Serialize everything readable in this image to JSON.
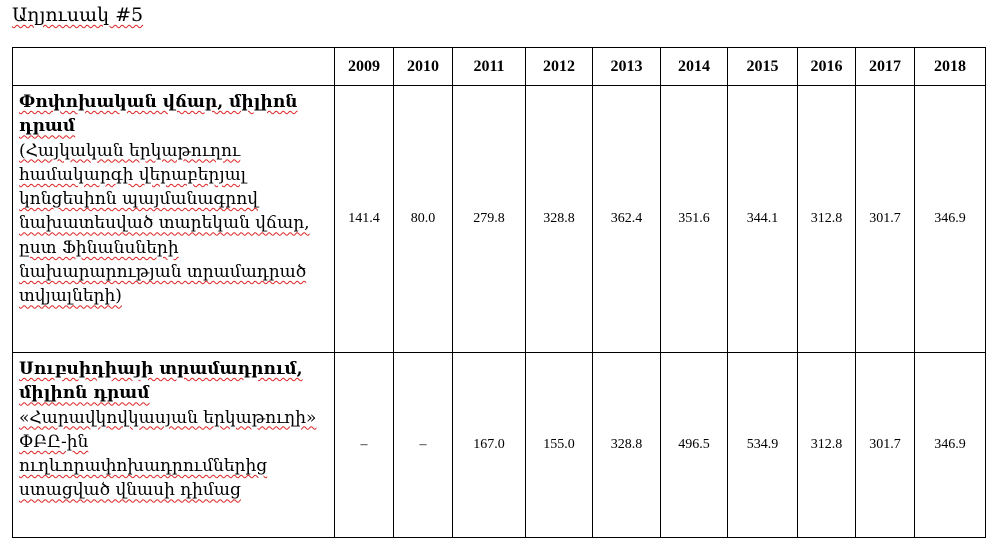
{
  "title": "Աղյուսակ #5",
  "table": {
    "header": [
      "2009",
      "2010",
      "2011",
      "2012",
      "2013",
      "2014",
      "2015",
      "2016",
      "2017",
      "2018"
    ],
    "rows": [
      {
        "label": "Փոփոխական վճար, միլիոն դրամ",
        "description": "(Հայկական երկաթուղու համակարգի վերաբերյալ կոնցեսիոն պայմանագրով նախատեսված տարեկան վճար, ըստ Ֆինանսների նախարարության տրամադրած տվյալների)",
        "values": [
          "141.4",
          "80.0",
          "279.8",
          "328.8",
          "362.4",
          "351.6",
          "344.1",
          "312.8",
          "301.7",
          "346.9"
        ]
      },
      {
        "label": "Սուբսիդիայի տրամադրում, միլիոն դրամ",
        "description": "«Հարավկովկասյան երկաթուղի» ՓԲԸ-ին ուղևորափոխադրումներից ստացված վնասի դիմաց",
        "values": [
          "–",
          "–",
          "167.0",
          "155.0",
          "328.8",
          "496.5",
          "534.9",
          "312.8",
          "301.7",
          "346.9"
        ]
      }
    ]
  }
}
